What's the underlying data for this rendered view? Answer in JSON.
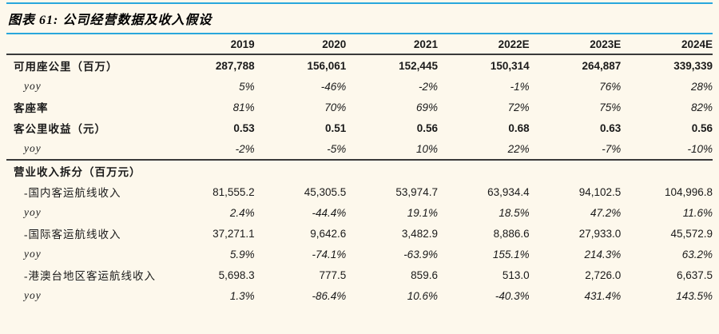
{
  "title": "图表 61: 公司经营数据及收入假设",
  "colors": {
    "background": "#FDF8EC",
    "accent_blue_rule": "#29A7DC",
    "dark_table_rule": "#3A3A3A",
    "text": "#1A1A1A"
  },
  "table": {
    "columns": [
      "",
      "2019",
      "2020",
      "2021",
      "2022E",
      "2023E",
      "2024E"
    ],
    "rows": [
      {
        "label": "可用座公里（百万）",
        "label_style": "bold",
        "indent": 0,
        "values": [
          "287,788",
          "156,061",
          "152,445",
          "150,314",
          "264,887",
          "339,339"
        ],
        "value_style": "bold",
        "section_end": false
      },
      {
        "label": "yoy",
        "label_style": "italic",
        "indent": 1,
        "values": [
          "5%",
          "-46%",
          "-2%",
          "-1%",
          "76%",
          "28%"
        ],
        "value_style": "italic",
        "section_end": false
      },
      {
        "label": "客座率",
        "label_style": "bold",
        "indent": 0,
        "values": [
          "81%",
          "70%",
          "69%",
          "72%",
          "75%",
          "82%"
        ],
        "value_style": "italic",
        "section_end": false
      },
      {
        "label": "客公里收益（元）",
        "label_style": "bold",
        "indent": 0,
        "values": [
          "0.53",
          "0.51",
          "0.56",
          "0.68",
          "0.63",
          "0.56"
        ],
        "value_style": "bold",
        "section_end": false
      },
      {
        "label": "yoy",
        "label_style": "italic",
        "indent": 1,
        "values": [
          "-2%",
          "-5%",
          "10%",
          "22%",
          "-7%",
          "-10%"
        ],
        "value_style": "italic",
        "section_end": true
      },
      {
        "label": "营业收入拆分（百万元）",
        "label_style": "bold",
        "indent": 0,
        "values": [
          "",
          "",
          "",
          "",
          "",
          ""
        ],
        "value_style": "normal",
        "section_end": false
      },
      {
        "label": "-国内客运航线收入",
        "label_style": "normal",
        "indent": 1,
        "values": [
          "81,555.2",
          "45,305.5",
          "53,974.7",
          "63,934.4",
          "94,102.5",
          "104,996.8"
        ],
        "value_style": "normal",
        "section_end": false
      },
      {
        "label": "yoy",
        "label_style": "italic",
        "indent": 1,
        "values": [
          "2.4%",
          "-44.4%",
          "19.1%",
          "18.5%",
          "47.2%",
          "11.6%"
        ],
        "value_style": "italic",
        "section_end": false
      },
      {
        "label": "-国际客运航线收入",
        "label_style": "normal",
        "indent": 1,
        "values": [
          "37,271.1",
          "9,642.6",
          "3,482.9",
          "8,886.6",
          "27,933.0",
          "45,572.9"
        ],
        "value_style": "normal",
        "section_end": false
      },
      {
        "label": "yoy",
        "label_style": "italic",
        "indent": 1,
        "values": [
          "5.9%",
          "-74.1%",
          "-63.9%",
          "155.1%",
          "214.3%",
          "63.2%"
        ],
        "value_style": "italic",
        "section_end": false
      },
      {
        "label": "-港澳台地区客运航线收入",
        "label_style": "normal",
        "indent": 1,
        "values": [
          "5,698.3",
          "777.5",
          "859.6",
          "513.0",
          "2,726.0",
          "6,637.5"
        ],
        "value_style": "normal",
        "section_end": false
      },
      {
        "label": "yoy",
        "label_style": "italic",
        "indent": 1,
        "values": [
          "1.3%",
          "-86.4%",
          "10.6%",
          "-40.3%",
          "431.4%",
          "143.5%"
        ],
        "value_style": "italic",
        "section_end": false
      }
    ]
  }
}
